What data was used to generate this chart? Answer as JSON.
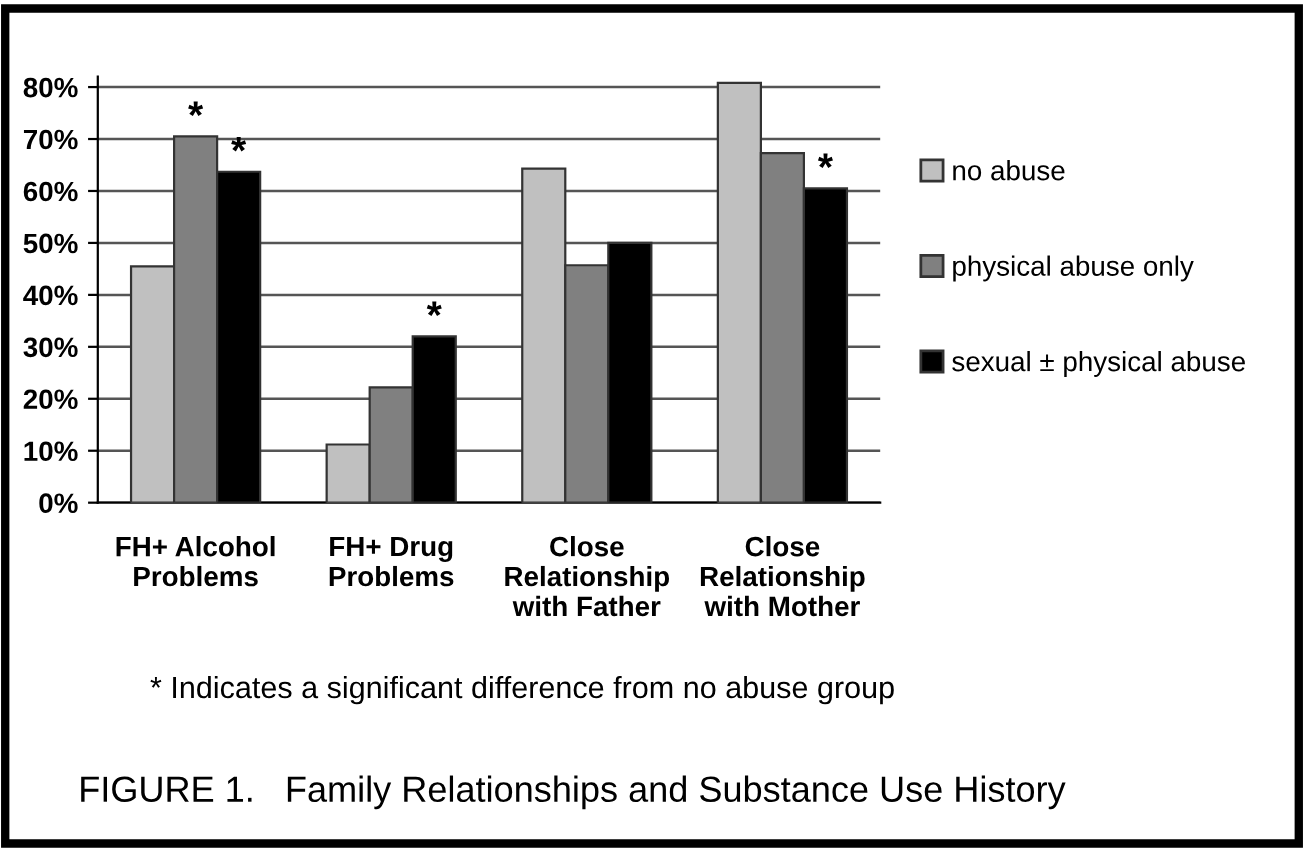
{
  "chart_data": {
    "type": "bar",
    "title": "FIGURE 1.   Family Relationships and Substance Use History",
    "categories": [
      "FH+ Alcohol\nProblems",
      "FH+ Drug\nProblems",
      "Close\nRelationship\nwith Father",
      "Close\nRelationship\nwith Mother"
    ],
    "series": [
      {
        "name": "no abuse",
        "color": "#c0c0c0",
        "values": [
          45.5,
          11.2,
          64.3,
          80.8
        ]
      },
      {
        "name": "physical abuse only",
        "color": "#808080",
        "values": [
          70.5,
          22.2,
          45.7,
          67.3
        ],
        "value_labels": [
          "*",
          null,
          null,
          null
        ]
      },
      {
        "name": "sexual ± physical abuse",
        "color": "#000000",
        "values": [
          63.7,
          32,
          50,
          60.5
        ],
        "value_labels": [
          "*",
          "*",
          null,
          "*"
        ]
      }
    ],
    "ylim": [
      0,
      82
    ],
    "yticks": [
      {
        "value": 0,
        "label": "0%"
      },
      {
        "value": 10,
        "label": "10%"
      },
      {
        "value": 20,
        "label": "20%"
      },
      {
        "value": 30,
        "label": "30%"
      },
      {
        "value": 40,
        "label": "40%"
      },
      {
        "value": 50,
        "label": "50%"
      },
      {
        "value": 60,
        "label": "60%"
      },
      {
        "value": 70,
        "label": "70%"
      },
      {
        "value": 80,
        "label": "80%"
      }
    ],
    "grid": "y",
    "legend": "right",
    "annotations": [
      "* Indicates a significant difference from no abuse group"
    ]
  }
}
